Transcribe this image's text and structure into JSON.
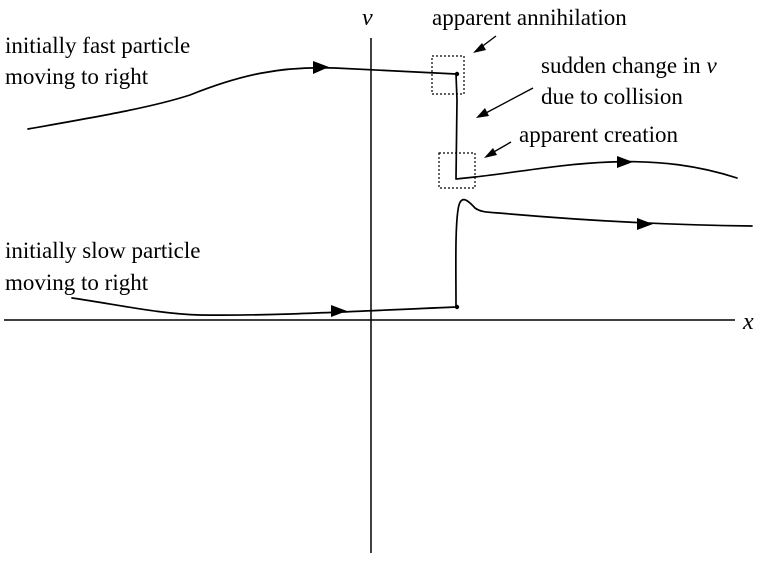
{
  "axes": {
    "vertical_label": "v",
    "horizontal_label": "x"
  },
  "labels": {
    "fast_particle_line1": "initially fast particle",
    "fast_particle_line2": "moving to right",
    "slow_particle_line1": "initially slow particle",
    "slow_particle_line2": "moving to right",
    "annihilation": "apparent annihilation",
    "collision_line1_prefix": "sudden change in ",
    "collision_line1_var": "v",
    "collision_line2": "due to collision",
    "creation": "apparent creation"
  },
  "colors": {
    "ink": "#000000",
    "background": "#ffffff"
  }
}
